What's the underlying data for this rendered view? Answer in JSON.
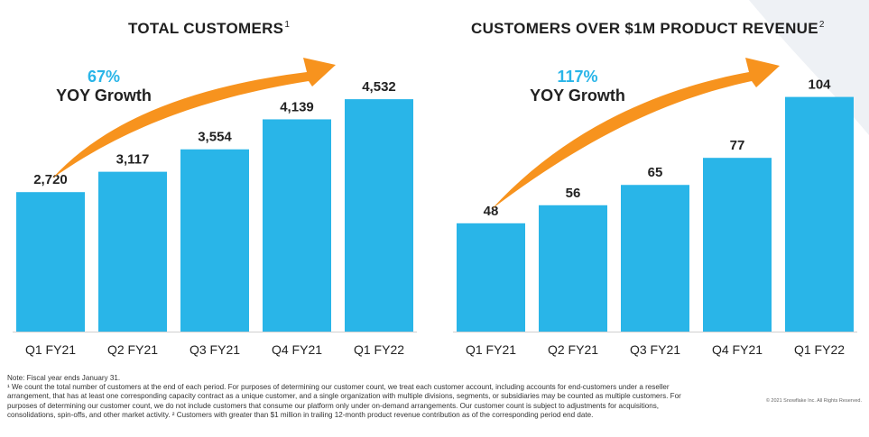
{
  "charts": [
    {
      "title": "TOTAL CUSTOMERS",
      "title_sup": "1",
      "growth_pct": "67%",
      "growth_label": "YOY Growth"
    },
    {
      "title": "CUSTOMERS OVER $1M PRODUCT REVENUE",
      "title_sup": "2",
      "growth_pct": "117%",
      "growth_label": "YOY Growth"
    }
  ],
  "chart_data": [
    {
      "type": "bar",
      "title": "TOTAL CUSTOMERS",
      "categories": [
        "Q1 FY21",
        "Q2 FY21",
        "Q3 FY21",
        "Q4 FY21",
        "Q1 FY22"
      ],
      "values": [
        2720,
        3117,
        3554,
        4139,
        4532
      ],
      "value_labels": [
        "2,720",
        "3,117",
        "3,554",
        "4,139",
        "4,532"
      ],
      "annotation": "67% YOY Growth",
      "bar_color": "#29b5e8",
      "arrow_color": "#f7931e",
      "ylim": [
        0,
        5500
      ],
      "grid": false
    },
    {
      "type": "bar",
      "title": "CUSTOMERS OVER $1M PRODUCT REVENUE",
      "categories": [
        "Q1 FY21",
        "Q2 FY21",
        "Q3 FY21",
        "Q4 FY21",
        "Q1 FY22"
      ],
      "values": [
        48,
        56,
        65,
        77,
        104
      ],
      "value_labels": [
        "48",
        "56",
        "65",
        "77",
        "104"
      ],
      "annotation": "117% YOY Growth",
      "bar_color": "#29b5e8",
      "arrow_color": "#f7931e",
      "ylim": [
        0,
        125
      ],
      "grid": false
    }
  ],
  "footnote": {
    "note": "Note: Fiscal year ends January 31.",
    "text": "¹ We count the total number of customers at the end of each period. For purposes of determining our customer count, we treat each customer account, including accounts for end-customers under a reseller arrangement, that has at least one corresponding capacity contract as a unique customer, and a single organization with multiple divisions, segments, or subsidiaries may be counted as multiple customers. For purposes of determining our customer count, we do not include customers that consume our platform only under on-demand arrangements. Our customer count is subject to adjustments for acquisitions, consolidations, spin-offs, and other market activity. ² Customers with greater than $1 million in trailing 12-month product revenue contribution as of the corresponding period end date."
  },
  "copyright": "© 2021 Snowflake Inc. All Rights Reserved."
}
